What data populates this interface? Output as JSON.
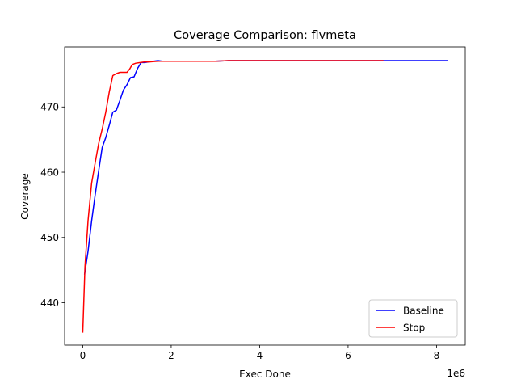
{
  "chart_data": {
    "type": "line",
    "title": "Coverage Comparison: flvmeta",
    "xlabel": "Exec Done",
    "ylabel": "Coverage",
    "x_offset_label": "1e6",
    "xlim": [
      -0.41,
      8.65
    ],
    "ylim": [
      433.5,
      479.2
    ],
    "xticks": [
      0,
      2,
      4,
      6,
      8
    ],
    "yticks": [
      440,
      450,
      460,
      470
    ],
    "grid": false,
    "legend_position": "lower-right",
    "series": [
      {
        "name": "Baseline",
        "color": "#0000ff",
        "x": [
          0.04,
          0.12,
          0.2,
          0.28,
          0.36,
          0.44,
          0.52,
          0.6,
          0.68,
          0.76,
          0.84,
          0.92,
          1.0,
          1.08,
          1.16,
          1.24,
          1.32,
          1.4,
          1.5,
          1.6,
          1.7,
          1.8,
          2.0,
          3.0,
          3.3,
          4.0,
          5.0,
          6.0,
          6.8,
          7.5,
          8.25
        ],
        "y": [
          444.3,
          447.9,
          452.5,
          456.5,
          460.2,
          463.8,
          465.3,
          467.2,
          469.2,
          469.5,
          471.0,
          472.6,
          473.4,
          474.5,
          474.6,
          475.9,
          476.8,
          476.8,
          476.9,
          477.0,
          477.1,
          477.0,
          477.0,
          477.0,
          477.1,
          477.1,
          477.1,
          477.1,
          477.1,
          477.1,
          477.1
        ]
      },
      {
        "name": "Stop",
        "color": "#ff0000",
        "x": [
          0.0,
          0.05,
          0.12,
          0.2,
          0.28,
          0.36,
          0.44,
          0.52,
          0.6,
          0.68,
          0.76,
          0.84,
          0.92,
          1.0,
          1.06,
          1.12,
          1.2,
          1.3,
          1.4,
          1.5,
          1.7,
          2.0,
          2.5,
          3.0,
          3.3,
          4.0,
          5.0,
          6.0,
          6.8
        ],
        "y": [
          435.4,
          445.5,
          452.6,
          458.3,
          461.4,
          464.4,
          466.6,
          469.2,
          472.3,
          474.8,
          475.1,
          475.3,
          475.3,
          475.3,
          475.8,
          476.5,
          476.7,
          476.8,
          476.9,
          476.9,
          477.0,
          477.0,
          477.0,
          477.0,
          477.1,
          477.1,
          477.1,
          477.1,
          477.1
        ]
      }
    ]
  }
}
